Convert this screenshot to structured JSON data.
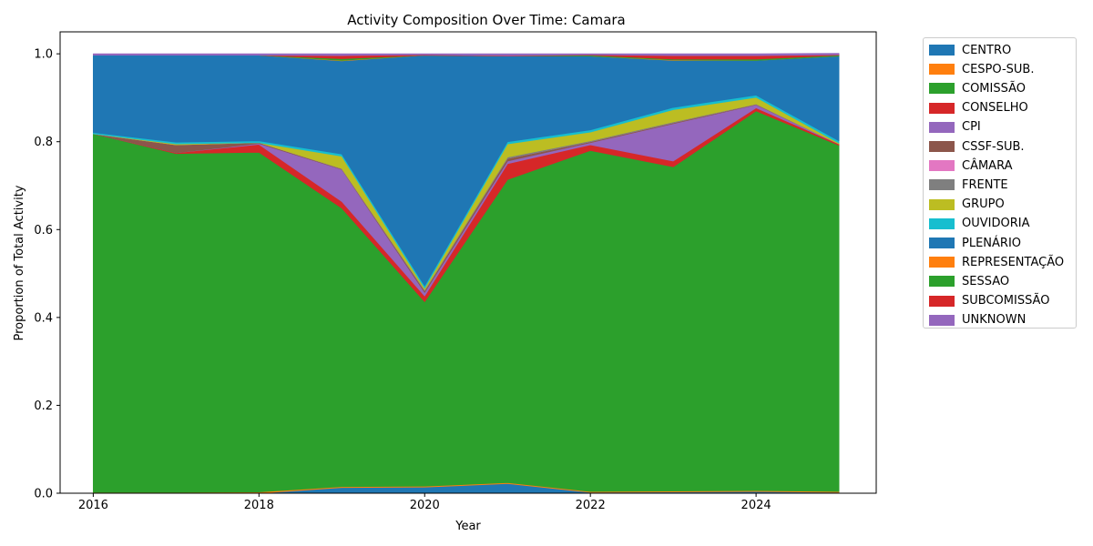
{
  "chart_data": {
    "type": "area",
    "title": "Activity Composition Over Time: Camara",
    "xlabel": "Year",
    "ylabel": "Proportion of Total Activity",
    "x": [
      2016,
      2017,
      2018,
      2019,
      2020,
      2021,
      2022,
      2023,
      2024,
      2025
    ],
    "xlim": [
      2015.6,
      2025.45
    ],
    "ylim": [
      0,
      1.05
    ],
    "xticks": [
      "2016",
      "2018",
      "2020",
      "2022",
      "2024"
    ],
    "yticks": [
      "0.0",
      "0.2",
      "0.4",
      "0.6",
      "0.8",
      "1.0"
    ],
    "stacked": true,
    "grid": false,
    "legend_position": "outside-right",
    "series": [
      {
        "name": "CENTRO",
        "color": "#1f77b4",
        "values": [
          0.0,
          0.0,
          0.0,
          0.013,
          0.014,
          0.022,
          0.002,
          0.003,
          0.004,
          0.002
        ]
      },
      {
        "name": "CESPO-SUB.",
        "color": "#ff7f0e",
        "values": [
          0.002,
          0.002,
          0.003,
          0.002,
          0.002,
          0.002,
          0.002,
          0.002,
          0.002,
          0.002
        ]
      },
      {
        "name": "COMISSÃO",
        "color": "#2ca02c",
        "values": [
          0.816,
          0.771,
          0.773,
          0.634,
          0.42,
          0.69,
          0.776,
          0.738,
          0.864,
          0.788
        ]
      },
      {
        "name": "CONSELHO",
        "color": "#d62728",
        "values": [
          0.0,
          0.002,
          0.018,
          0.015,
          0.013,
          0.036,
          0.013,
          0.013,
          0.007,
          0.003
        ]
      },
      {
        "name": "CPI",
        "color": "#9467bd",
        "values": [
          0.0,
          0.0,
          0.002,
          0.073,
          0.008,
          0.006,
          0.005,
          0.085,
          0.007,
          0.0
        ]
      },
      {
        "name": "CSSF-SUB.",
        "color": "#8c564b",
        "values": [
          0.0,
          0.018,
          0.002,
          0.001,
          0.004,
          0.006,
          0.002,
          0.002,
          0.001,
          0.0
        ]
      },
      {
        "name": "CÂMARA",
        "color": "#e377c2",
        "values": [
          0.0,
          0.0,
          0.0,
          0.0,
          0.0,
          0.0,
          0.0,
          0.0,
          0.0,
          0.0
        ]
      },
      {
        "name": "FRENTE",
        "color": "#7f7f7f",
        "values": [
          0.0,
          0.0,
          0.0,
          0.001,
          0.002,
          0.003,
          0.002,
          0.002,
          0.001,
          0.0
        ]
      },
      {
        "name": "GRUPO",
        "color": "#bcbd22",
        "values": [
          0.0,
          0.002,
          0.0,
          0.028,
          0.004,
          0.03,
          0.02,
          0.028,
          0.015,
          0.002
        ]
      },
      {
        "name": "OUVIDORIA",
        "color": "#17becf",
        "values": [
          0.003,
          0.004,
          0.004,
          0.005,
          0.005,
          0.005,
          0.005,
          0.005,
          0.005,
          0.005
        ]
      },
      {
        "name": "PLENÁRIO",
        "color": "#1f77b4",
        "values": [
          0.176,
          0.198,
          0.195,
          0.212,
          0.525,
          0.195,
          0.168,
          0.107,
          0.079,
          0.193
        ]
      },
      {
        "name": "REPRESENTAÇÃO",
        "color": "#ff7f0e",
        "values": [
          0.0,
          0.0,
          0.0,
          0.001,
          0.0,
          0.0,
          0.0,
          0.001,
          0.0,
          0.0
        ]
      },
      {
        "name": "SESSAO",
        "color": "#2ca02c",
        "values": [
          0.0,
          0.0,
          0.0,
          0.004,
          0.0,
          0.0,
          0.002,
          0.002,
          0.003,
          0.002
        ]
      },
      {
        "name": "SUBCOMISSÃO",
        "color": "#d62728",
        "values": [
          0.0,
          0.0,
          0.0,
          0.007,
          0.001,
          0.001,
          0.001,
          0.008,
          0.008,
          0.001
        ]
      },
      {
        "name": "UNKNOWN",
        "color": "#9467bd",
        "values": [
          0.003,
          0.003,
          0.003,
          0.004,
          0.002,
          0.004,
          0.002,
          0.004,
          0.004,
          0.003
        ]
      }
    ]
  }
}
